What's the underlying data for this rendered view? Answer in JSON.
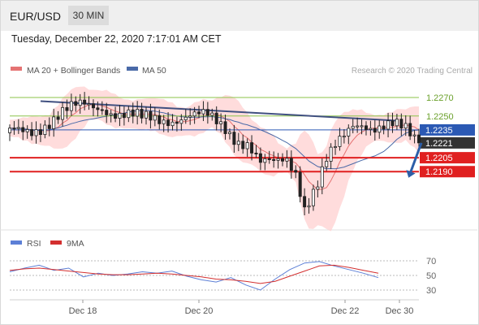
{
  "header": {
    "pair": "EUR/USD",
    "timeframe": "30 MIN"
  },
  "timestamp": "Tuesday, December 22, 2020 7:17:01 AM CET",
  "legend": {
    "ma20": "MA 20 + Bollinger Bands",
    "ma50": "MA 50",
    "credit": "Research © 2020 Trading Central"
  },
  "rsi_legend": {
    "rsi": "RSI",
    "ma9": "9MA"
  },
  "colors": {
    "candle": "#222222",
    "bollinger": "#ffd0d0",
    "ma20": "#e57373",
    "ma50": "#4a6aa8",
    "trendline": "#405080",
    "green_level": "#8bc34a",
    "blue_level": "#2b59b4",
    "red_level": "#e02020",
    "arrow": "#2b5ea8",
    "rsi": "#5c7fd6",
    "rsi_ma": "#d32f2f"
  },
  "chart_data": [
    {
      "type": "candlestick",
      "title": "EUR/USD",
      "timeframe": "30 MIN",
      "x_tick_labels": [
        "Dec 18",
        "Dec 20",
        "Dec 22",
        "Dec 30"
      ],
      "levels": [
        {
          "value": 1.227,
          "label": "1.2270",
          "style": "green"
        },
        {
          "value": 1.225,
          "label": "1.2250",
          "style": "green"
        },
        {
          "value": 1.2235,
          "label": "1.2235",
          "style": "blue"
        },
        {
          "value": 1.2221,
          "label": "1.2221",
          "style": "current"
        },
        {
          "value": 1.2205,
          "label": "1.2205",
          "style": "red"
        },
        {
          "value": 1.219,
          "label": "1.2190",
          "style": "red"
        }
      ],
      "ylim": [
        1.2128,
        1.2298
      ],
      "series": [
        {
          "name": "MA 20 + Bollinger Bands"
        },
        {
          "name": "MA 50"
        }
      ],
      "price_path": [
        [
          0,
          1.223
        ],
        [
          5,
          1.2236
        ],
        [
          12,
          1.2252
        ],
        [
          17,
          1.2261
        ],
        [
          21,
          1.2262
        ],
        [
          25,
          1.2252
        ],
        [
          30,
          1.2245
        ],
        [
          35,
          1.2248
        ],
        [
          40,
          1.225
        ],
        [
          45,
          1.2247
        ],
        [
          49,
          1.2238
        ],
        [
          52,
          1.2226
        ],
        [
          54,
          1.2222
        ],
        [
          57,
          1.2197
        ],
        [
          60,
          1.2196
        ],
        [
          63,
          1.2203
        ],
        [
          65,
          1.2192
        ],
        [
          67,
          1.2155
        ],
        [
          70,
          1.2178
        ],
        [
          72,
          1.22
        ],
        [
          74,
          1.2213
        ],
        [
          76,
          1.2226
        ],
        [
          78,
          1.2241
        ],
        [
          80,
          1.2245
        ],
        [
          83,
          1.224
        ],
        [
          87,
          1.2238
        ],
        [
          90,
          1.2232
        ],
        [
          93,
          1.2221
        ]
      ],
      "forecast": {
        "from": 1.2221,
        "to": 1.219
      }
    },
    {
      "type": "line",
      "title": "RSI",
      "y_tick_labels": [
        "70",
        "50",
        "30"
      ],
      "ylim": [
        20,
        80
      ],
      "series": [
        {
          "name": "RSI",
          "values": [
            55,
            60,
            64,
            57,
            60,
            48,
            53,
            50,
            52,
            55,
            53,
            56,
            49,
            44,
            41,
            47,
            37,
            30,
            45,
            58,
            67,
            69,
            63,
            58,
            53,
            47
          ]
        },
        {
          "name": "9MA",
          "values": [
            57,
            59,
            60,
            58,
            56,
            54,
            52,
            51,
            51,
            52,
            53,
            52,
            50,
            48,
            45,
            44,
            42,
            39,
            42,
            49,
            56,
            63,
            64,
            61,
            57,
            53
          ]
        }
      ]
    }
  ]
}
